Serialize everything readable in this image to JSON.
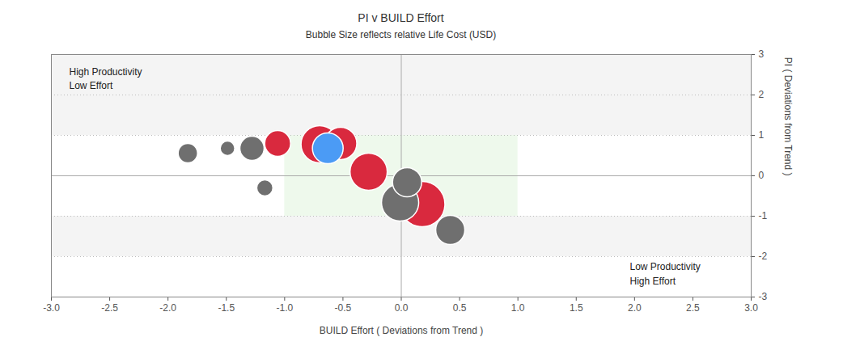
{
  "chart_data": {
    "type": "scatter",
    "title": "PI v BUILD Effort",
    "subtitle": "Bubble Size reflects relative Life Cost (USD)",
    "x_label": "BUILD Effort ( Deviations from Trend )",
    "y_label": "PI ( Deviations from Trend )",
    "annotations": [
      "High Productivity\nLow Effort",
      "Low Productivity\nHigh Effort"
    ],
    "x": [
      -1.83,
      -1.49,
      -1.28,
      -1.17,
      0.05,
      -0.01,
      0.42,
      -1.06,
      -0.52,
      -0.7,
      -0.28,
      0.18,
      -0.63
    ],
    "y": [
      0.56,
      0.68,
      0.68,
      -0.3,
      -0.16,
      -0.66,
      -1.34,
      0.8,
      0.8,
      0.78,
      0.1,
      -0.7,
      0.68
    ],
    "sizes": [
      144,
      81,
      225,
      100,
      324,
      529,
      324,
      256,
      400,
      529,
      529,
      784,
      361
    ],
    "colors": [
      "#6f6f6f",
      "#6f6f6f",
      "#6f6f6f",
      "#6f6f6f",
      "#6f6f6f",
      "#6f6f6f",
      "#6f6f6f",
      "#d9293e",
      "#d9293e",
      "#d9293e",
      "#d9293e",
      "#d9293e",
      "#4b9bf5"
    ],
    "xlim": [
      -3,
      3
    ],
    "ylim": [
      -3,
      3
    ],
    "xticks": [
      {
        "value": -3,
        "label": "-3.0"
      },
      {
        "value": -2.5,
        "label": "-2.5"
      },
      {
        "value": -2,
        "label": "-2.0"
      },
      {
        "value": -1.5,
        "label": "-1.5"
      },
      {
        "value": -1,
        "label": "-1.0"
      },
      {
        "value": -0.5,
        "label": "-0.5"
      },
      {
        "value": 0,
        "label": "0.0"
      },
      {
        "value": 0.5,
        "label": "0.5"
      },
      {
        "value": 1,
        "label": "1.0"
      },
      {
        "value": 1.5,
        "label": "1.5"
      },
      {
        "value": 2,
        "label": "2.0"
      },
      {
        "value": 2.5,
        "label": "2.5"
      },
      {
        "value": 3,
        "label": "3.0"
      }
    ],
    "yticks": [
      -3,
      -2,
      -1,
      0,
      1,
      2,
      3
    ],
    "grid": true,
    "bands": [
      [
        1,
        3
      ],
      [
        -2,
        -1
      ]
    ],
    "target_zone": {
      "x": [
        -1,
        1
      ],
      "y": [
        -1,
        1
      ]
    },
    "reference_lines": {
      "x": 0,
      "y": 0
    }
  }
}
